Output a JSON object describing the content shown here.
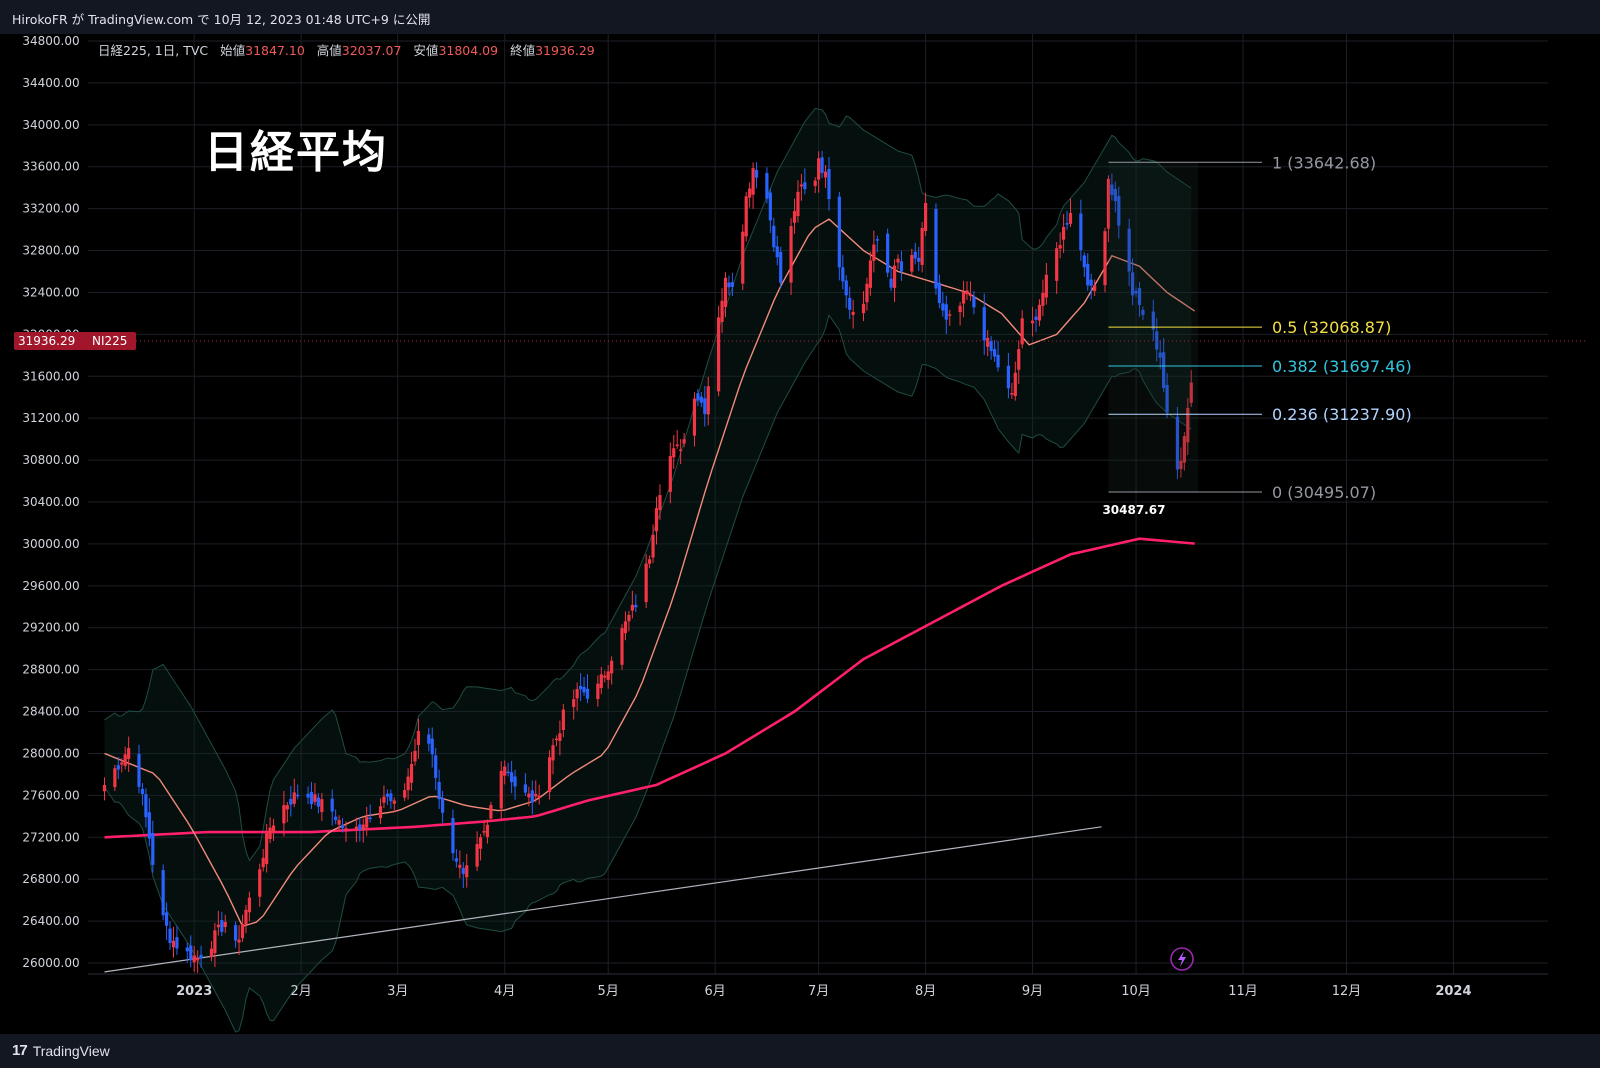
{
  "header": {
    "attribution": "HirokoFR が TradingView.com で 10月 12, 2023 01:48 UTC+9 に公開"
  },
  "legend": {
    "symbol": "日経225, 1日, TVC",
    "open_label": "始値",
    "open": "31847.10",
    "high_label": "高値",
    "high": "32037.07",
    "low_label": "安値",
    "low": "31804.09",
    "close_label": "終値",
    "close": "31936.29"
  },
  "title_overlay": "日経平均",
  "price_tag": {
    "value": "31936.29",
    "ticker": "NI225"
  },
  "low_annotation": "30487.67",
  "footer": {
    "brand": "TradingView"
  },
  "colors": {
    "up": "#f23645",
    "down": "#2962ff",
    "ma200": "#ff1f6b",
    "ma20": "#f28b7b",
    "fib_half": "#f5e042",
    "fib_382": "#32c6e0",
    "fib_236": "#b3d4ff",
    "fib_edge": "#9598a1"
  },
  "chart_data": {
    "type": "candlestick",
    "y_axis": {
      "min": 26000,
      "max": 34800,
      "ticks": [
        "34800.00",
        "34400.00",
        "34000.00",
        "33600.00",
        "33200.00",
        "32800.00",
        "32400.00",
        "32000.00",
        "31600.00",
        "31200.00",
        "30800.00",
        "30400.00",
        "30000.00",
        "29600.00",
        "29200.00",
        "28800.00",
        "28400.00",
        "28000.00",
        "27600.00",
        "27200.00",
        "26800.00",
        "26400.00",
        "26000.00"
      ]
    },
    "x_axis": {
      "labels": [
        "2023",
        "2月",
        "3月",
        "4月",
        "5月",
        "6月",
        "7月",
        "8月",
        "9月",
        "10月",
        "11月",
        "12月",
        "2024"
      ],
      "label_days": [
        16,
        47,
        75,
        106,
        136,
        167,
        197,
        228,
        259,
        289,
        320,
        350,
        381
      ]
    },
    "grid": true,
    "fibonacci": [
      {
        "level": "1",
        "price": "33642.68"
      },
      {
        "level": "0.5",
        "price": "32068.87"
      },
      {
        "level": "0.382",
        "price": "31697.46"
      },
      {
        "level": "0.236",
        "price": "31237.90"
      },
      {
        "level": "0",
        "price": "30495.07"
      }
    ],
    "trendline": {
      "start": [
        -10,
        25915
      ],
      "end": [
        279,
        27300
      ]
    },
    "anchors": [
      [
        -10,
        27700
      ],
      [
        -6,
        27900
      ],
      [
        -2,
        28100
      ],
      [
        3,
        27200
      ],
      [
        6,
        26500
      ],
      [
        9,
        26250
      ],
      [
        13,
        26100
      ],
      [
        17,
        26050
      ],
      [
        21,
        26200
      ],
      [
        25,
        26400
      ],
      [
        28,
        26150
      ],
      [
        31,
        26500
      ],
      [
        34,
        26800
      ],
      [
        38,
        27300
      ],
      [
        42,
        27500
      ],
      [
        47,
        27650
      ],
      [
        51,
        27550
      ],
      [
        56,
        27450
      ],
      [
        61,
        27200
      ],
      [
        66,
        27400
      ],
      [
        71,
        27600
      ],
      [
        75,
        27450
      ],
      [
        79,
        27900
      ],
      [
        82,
        28300
      ],
      [
        85,
        28000
      ],
      [
        88,
        27400
      ],
      [
        91,
        27100
      ],
      [
        94,
        26800
      ],
      [
        97,
        27000
      ],
      [
        101,
        27300
      ],
      [
        104,
        27900
      ],
      [
        106,
        27900
      ],
      [
        109,
        27700
      ],
      [
        112,
        27600
      ],
      [
        115,
        27550
      ],
      [
        118,
        27900
      ],
      [
        121,
        28150
      ],
      [
        124,
        28450
      ],
      [
        128,
        28600
      ],
      [
        132,
        28550
      ],
      [
        136,
        28850
      ],
      [
        139,
        29100
      ],
      [
        142,
        29300
      ],
      [
        145,
        29500
      ],
      [
        148,
        29900
      ],
      [
        150,
        30400
      ],
      [
        153,
        30800
      ],
      [
        156,
        30900
      ],
      [
        158,
        31000
      ],
      [
        161,
        31450
      ],
      [
        164,
        31300
      ],
      [
        166,
        31750
      ],
      [
        168,
        32200
      ],
      [
        170,
        32500
      ],
      [
        172,
        32500
      ],
      [
        174,
        32800
      ],
      [
        176,
        33300
      ],
      [
        178,
        33600
      ],
      [
        180,
        33500
      ],
      [
        182,
        33300
      ],
      [
        184,
        32900
      ],
      [
        186,
        32500
      ],
      [
        188,
        32800
      ],
      [
        190,
        33200
      ],
      [
        192,
        33400
      ],
      [
        195,
        33300
      ],
      [
        197,
        33700
      ],
      [
        199,
        33500
      ],
      [
        201,
        33200
      ],
      [
        203,
        32700
      ],
      [
        205,
        32400
      ],
      [
        207,
        32200
      ],
      [
        210,
        32300
      ],
      [
        212,
        32700
      ],
      [
        214,
        32900
      ],
      [
        216,
        32700
      ],
      [
        218,
        32500
      ],
      [
        220,
        32700
      ],
      [
        222,
        32500
      ],
      [
        224,
        32700
      ],
      [
        226,
        32700
      ],
      [
        228,
        33200
      ],
      [
        230,
        32600
      ],
      [
        232,
        32300
      ],
      [
        234,
        32100
      ],
      [
        237,
        32200
      ],
      [
        240,
        32400
      ],
      [
        243,
        32200
      ],
      [
        246,
        31900
      ],
      [
        249,
        31700
      ],
      [
        251,
        31500
      ],
      [
        253,
        31400
      ],
      [
        256,
        32100
      ],
      [
        258,
        32000
      ],
      [
        261,
        32300
      ],
      [
        264,
        32600
      ],
      [
        267,
        32900
      ],
      [
        270,
        33200
      ],
      [
        273,
        32800
      ],
      [
        276,
        32400
      ],
      [
        279,
        32600
      ],
      [
        281,
        33500
      ],
      [
        283,
        33250
      ],
      [
        285,
        32900
      ],
      [
        288,
        32400
      ],
      [
        291,
        32200
      ],
      [
        294,
        32000
      ],
      [
        296,
        31800
      ],
      [
        298,
        31200
      ],
      [
        300,
        30550
      ],
      [
        302,
        30850
      ],
      [
        304,
        31300
      ],
      [
        306,
        31850
      ],
      [
        307,
        31940
      ]
    ],
    "ma200": [
      [
        -10,
        27200
      ],
      [
        20,
        27250
      ],
      [
        50,
        27250
      ],
      [
        80,
        27300
      ],
      [
        100,
        27350
      ],
      [
        115,
        27400
      ],
      [
        130,
        27550
      ],
      [
        150,
        27700
      ],
      [
        170,
        28000
      ],
      [
        190,
        28400
      ],
      [
        210,
        28900
      ],
      [
        230,
        29250
      ],
      [
        250,
        29600
      ],
      [
        270,
        29900
      ],
      [
        290,
        30050
      ],
      [
        307,
        30000
      ]
    ],
    "ma20": [
      [
        -10,
        28000
      ],
      [
        5,
        27800
      ],
      [
        15,
        27300
      ],
      [
        25,
        26700
      ],
      [
        30,
        26350
      ],
      [
        35,
        26400
      ],
      [
        45,
        26900
      ],
      [
        55,
        27250
      ],
      [
        65,
        27400
      ],
      [
        75,
        27450
      ],
      [
        85,
        27600
      ],
      [
        95,
        27500
      ],
      [
        105,
        27450
      ],
      [
        115,
        27550
      ],
      [
        125,
        27800
      ],
      [
        135,
        28000
      ],
      [
        145,
        28600
      ],
      [
        155,
        29500
      ],
      [
        165,
        30600
      ],
      [
        175,
        31600
      ],
      [
        185,
        32400
      ],
      [
        195,
        33000
      ],
      [
        200,
        33100
      ],
      [
        210,
        32800
      ],
      [
        220,
        32600
      ],
      [
        230,
        32500
      ],
      [
        240,
        32400
      ],
      [
        250,
        32200
      ],
      [
        258,
        31900
      ],
      [
        266,
        32000
      ],
      [
        274,
        32300
      ],
      [
        282,
        32750
      ],
      [
        290,
        32650
      ],
      [
        298,
        32400
      ],
      [
        307,
        32200
      ]
    ],
    "bb_band": {
      "width_low": 320,
      "width_high": 1150
    }
  }
}
